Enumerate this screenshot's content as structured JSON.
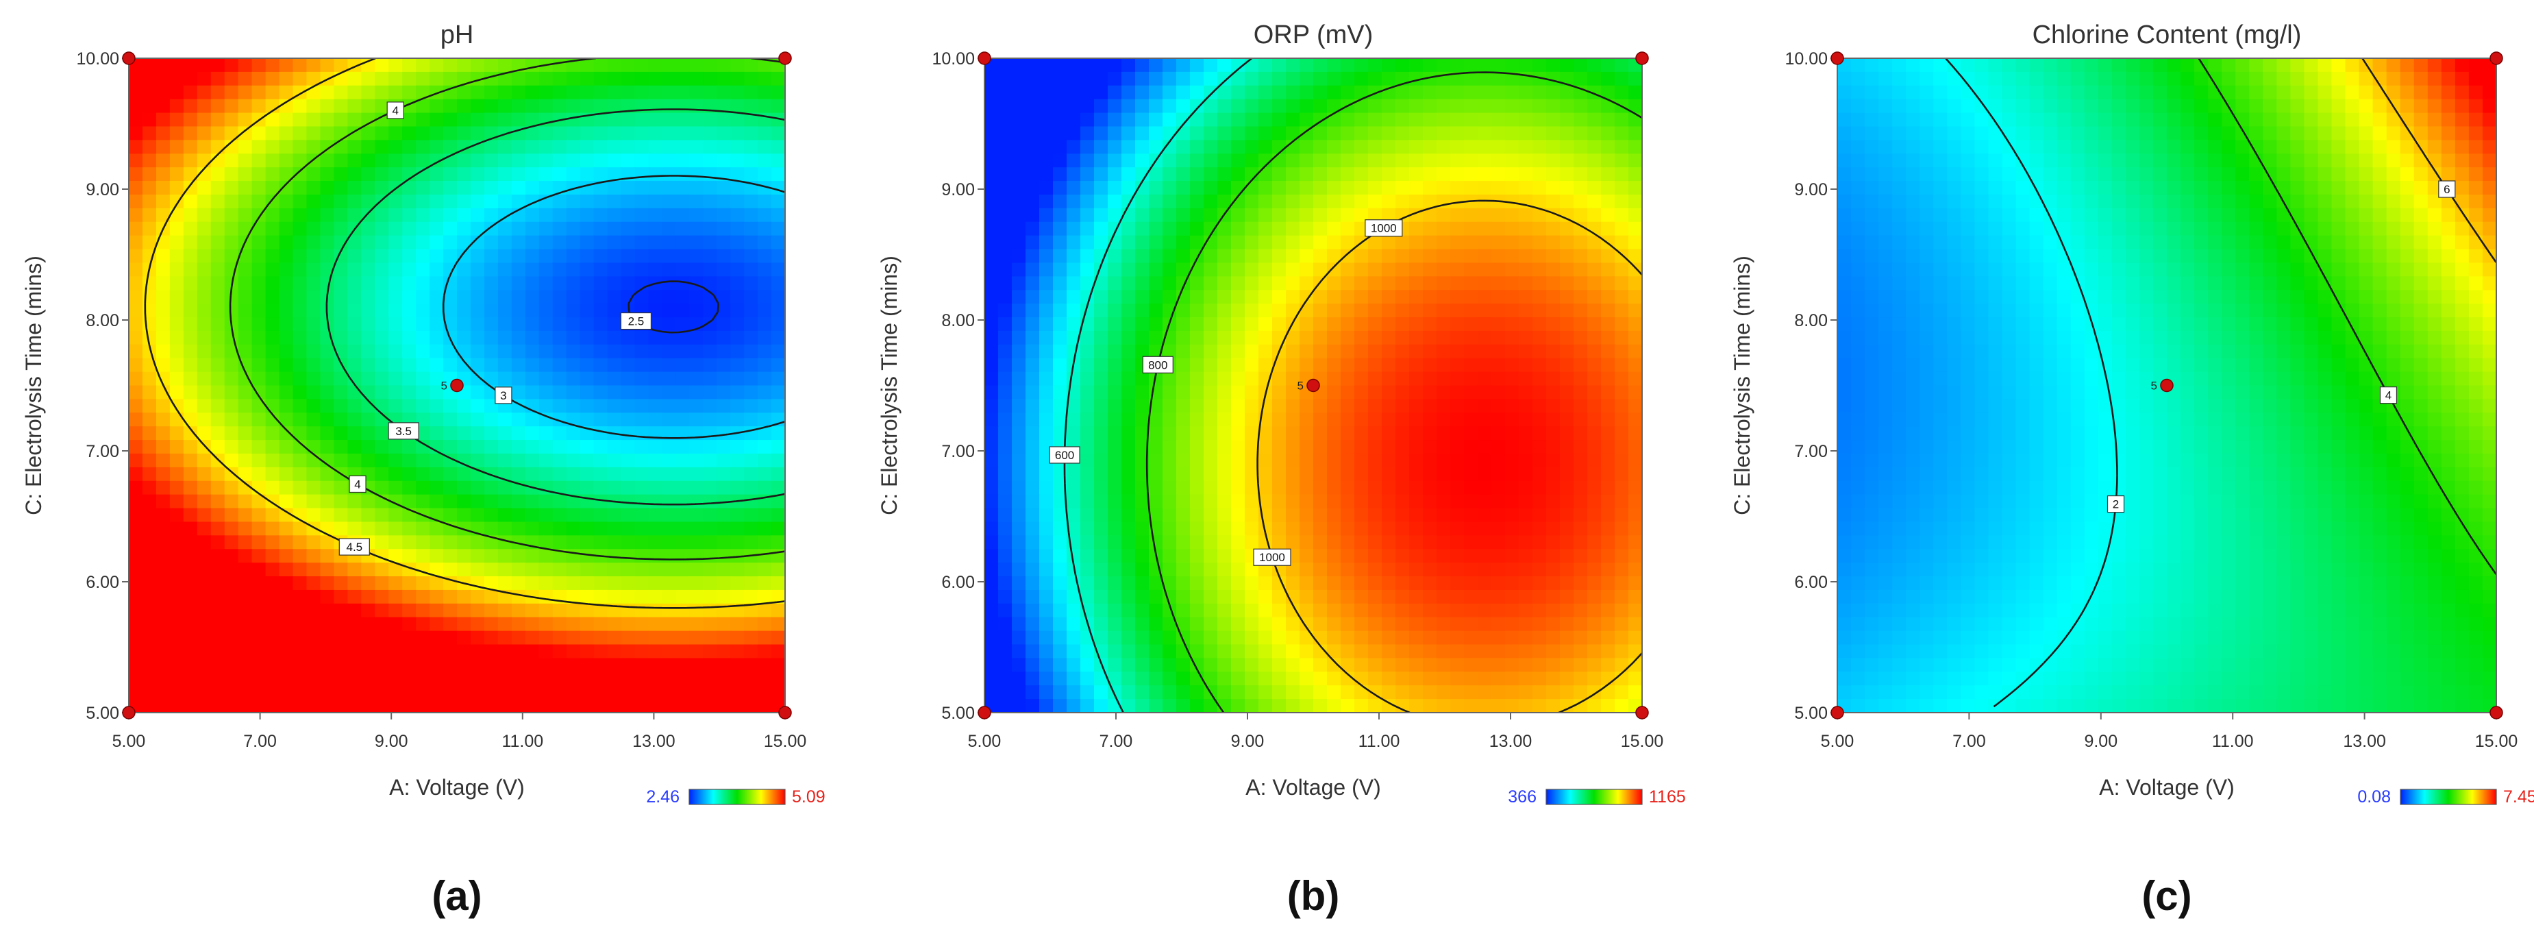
{
  "chart_data": [
    {
      "type": "heatmap",
      "subtype": "contour",
      "title": "pH",
      "xlabel": "A: Voltage (V)",
      "ylabel": "C: Electrolysis Time (mins)",
      "xlim": [
        5,
        15
      ],
      "ylim": [
        5,
        10
      ],
      "xticks": [
        "5.00",
        "7.00",
        "9.00",
        "11.00",
        "13.00",
        "15.00"
      ],
      "yticks": [
        "5.00",
        "6.00",
        "7.00",
        "8.00",
        "9.00",
        "10.00"
      ],
      "colorbar": {
        "min_label": "2.46",
        "max_label": "5.09",
        "min": 2.46,
        "max": 5.09
      },
      "contour_levels": [
        {
          "label": "2.5",
          "value": 2.5
        },
        {
          "label": "3",
          "value": 3
        },
        {
          "label": "3.5",
          "value": 3.5
        },
        {
          "label": "4",
          "value": 4
        },
        {
          "label": "4",
          "value": 4
        },
        {
          "label": "4.5",
          "value": 4.5
        }
      ],
      "design_points": [
        {
          "x": 5,
          "y": 5,
          "label": ""
        },
        {
          "x": 5,
          "y": 10,
          "label": ""
        },
        {
          "x": 15,
          "y": 5,
          "label": ""
        },
        {
          "x": 15,
          "y": 10,
          "label": ""
        },
        {
          "x": 10,
          "y": 7.5,
          "label": "5"
        }
      ],
      "model": {
        "center": [
          13.3,
          8.1
        ],
        "min": 2.46,
        "max": 5.09
      },
      "caption": "(a)"
    },
    {
      "type": "heatmap",
      "subtype": "contour",
      "title": "ORP (mV)",
      "xlabel": "A: Voltage (V)",
      "ylabel": "C: Electrolysis Time (mins)",
      "xlim": [
        5,
        15
      ],
      "ylim": [
        5,
        10
      ],
      "xticks": [
        "5.00",
        "7.00",
        "9.00",
        "11.00",
        "13.00",
        "15.00"
      ],
      "yticks": [
        "5.00",
        "6.00",
        "7.00",
        "8.00",
        "9.00",
        "10.00"
      ],
      "colorbar": {
        "min_label": "366",
        "max_label": "1165",
        "min": 366,
        "max": 1165
      },
      "contour_levels": [
        {
          "label": "600",
          "value": 600
        },
        {
          "label": "800",
          "value": 800
        },
        {
          "label": "1000",
          "value": 1000
        },
        {
          "label": "1000",
          "value": 1000
        }
      ],
      "design_points": [
        {
          "x": 5,
          "y": 5,
          "label": ""
        },
        {
          "x": 5,
          "y": 10,
          "label": ""
        },
        {
          "x": 15,
          "y": 5,
          "label": ""
        },
        {
          "x": 15,
          "y": 10,
          "label": ""
        },
        {
          "x": 10,
          "y": 7.5,
          "label": "5"
        }
      ],
      "model": {
        "center": [
          12.6,
          6.9
        ],
        "min": 366,
        "max": 1165
      },
      "caption": "(b)"
    },
    {
      "type": "heatmap",
      "subtype": "contour",
      "title": "Chlorine Content (mg/l)",
      "xlabel": "A: Voltage (V)",
      "ylabel": "C: Electrolysis Time (mins)",
      "xlim": [
        5,
        15
      ],
      "ylim": [
        5,
        10
      ],
      "xticks": [
        "5.00",
        "7.00",
        "9.00",
        "11.00",
        "13.00",
        "15.00"
      ],
      "yticks": [
        "5.00",
        "6.00",
        "7.00",
        "8.00",
        "9.00",
        "10.00"
      ],
      "colorbar": {
        "min_label": "0.08",
        "max_label": "7.45",
        "min": 0.08,
        "max": 7.45
      },
      "contour_levels": [
        {
          "label": "2",
          "value": 2
        },
        {
          "label": "4",
          "value": 4
        },
        {
          "label": "6",
          "value": 6
        }
      ],
      "design_points": [
        {
          "x": 5,
          "y": 5,
          "label": ""
        },
        {
          "x": 5,
          "y": 10,
          "label": ""
        },
        {
          "x": 15,
          "y": 5,
          "label": ""
        },
        {
          "x": 15,
          "y": 10,
          "label": ""
        },
        {
          "x": 10,
          "y": 7.5,
          "label": "5"
        }
      ],
      "model": {
        "min": 0.08,
        "max": 7.45
      },
      "caption": "(c)"
    }
  ],
  "colors": {
    "low_text": "#2a3cff",
    "high_text": "#e8211a",
    "point": "#d01010",
    "contour": "#1a1a1a",
    "colorscale": [
      "#0022ff",
      "#00ffff",
      "#00e000",
      "#ffff00",
      "#ff0000"
    ]
  }
}
